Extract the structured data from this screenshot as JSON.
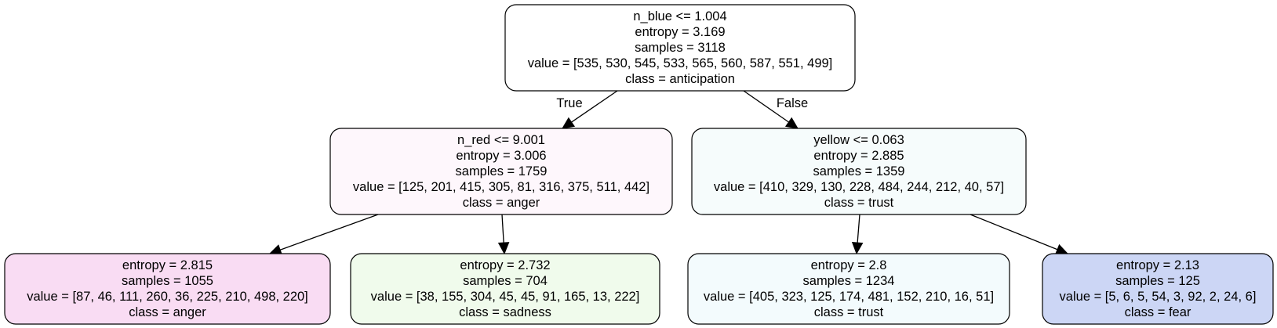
{
  "nodes": [
    {
      "id": "root",
      "lines": [
        "n_blue <= 1.004",
        "entropy = 3.169",
        "samples = 3118",
        "value = [535, 530, 545, 533, 565, 560, 587, 551, 499]",
        "class = anticipation"
      ],
      "fill": "#ffffff"
    },
    {
      "id": "left",
      "lines": [
        "n_red <= 9.001",
        "entropy = 3.006",
        "samples = 1759",
        "value = [125, 201, 415, 305, 81, 316, 375, 511, 442]",
        "class = anger"
      ],
      "fill": "#fef7fc"
    },
    {
      "id": "right",
      "lines": [
        "yellow <= 0.063",
        "entropy = 2.885",
        "samples = 1359",
        "value = [410, 329, 130, 228, 484, 244, 212, 40, 57]",
        "class = trust"
      ],
      "fill": "#f6fcfc"
    },
    {
      "id": "leaf1",
      "lines": [
        "entropy = 2.815",
        "samples = 1055",
        "value = [87, 46, 111, 260, 36, 225, 210, 498, 220]",
        "class = anger"
      ],
      "fill": "#f9dcf3"
    },
    {
      "id": "leaf2",
      "lines": [
        "entropy = 2.732",
        "samples = 704",
        "value = [38, 155, 304, 45, 45, 91, 165, 13, 222]",
        "class = sadness"
      ],
      "fill": "#f0fbec"
    },
    {
      "id": "leaf3",
      "lines": [
        "entropy = 2.8",
        "samples = 1234",
        "value = [405, 323, 125, 174, 481, 152, 210, 16, 51]",
        "class = trust"
      ],
      "fill": "#f3fbfd"
    },
    {
      "id": "leaf4",
      "lines": [
        "entropy = 2.13",
        "samples = 125",
        "value = [5, 6, 5, 54, 3, 92, 2, 24, 6]",
        "class = fear"
      ],
      "fill": "#ccd6f5"
    }
  ],
  "edges": [
    {
      "from": "root",
      "to": "left",
      "label": "True"
    },
    {
      "from": "root",
      "to": "right",
      "label": "False"
    },
    {
      "from": "left",
      "to": "leaf1",
      "label": ""
    },
    {
      "from": "left",
      "to": "leaf2",
      "label": ""
    },
    {
      "from": "right",
      "to": "leaf3",
      "label": ""
    },
    {
      "from": "right",
      "to": "leaf4",
      "label": ""
    }
  ]
}
